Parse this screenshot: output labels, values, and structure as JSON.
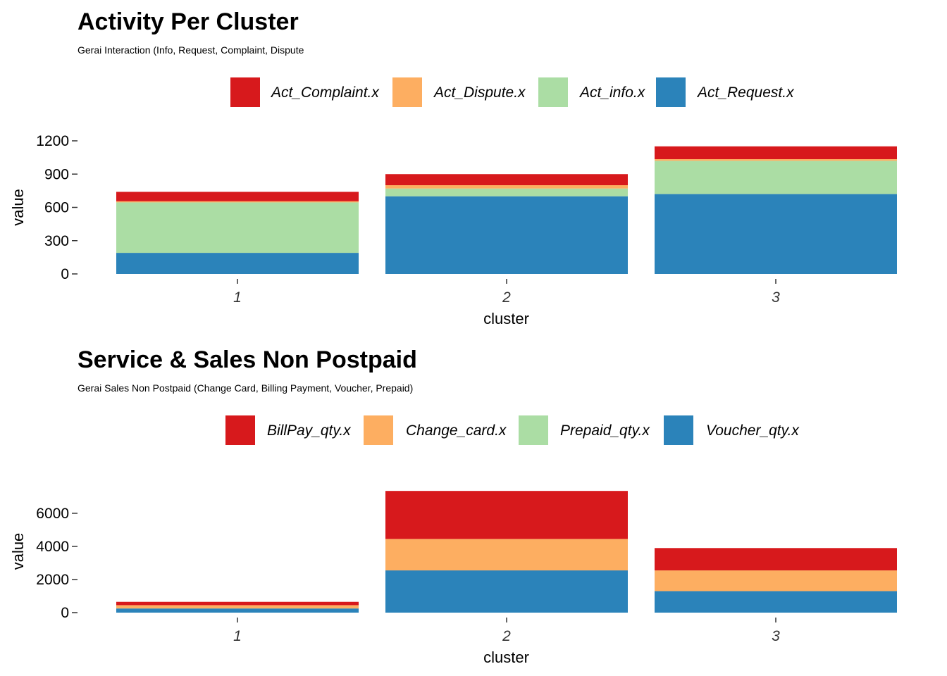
{
  "chart_data": [
    {
      "type": "bar",
      "stacked": true,
      "title": "Activity Per Cluster",
      "subtitle": "Gerai Interaction (Info, Request, Complaint, Dispute",
      "xlabel": "cluster",
      "ylabel": "value",
      "categories": [
        "1",
        "2",
        "3"
      ],
      "ylim": [
        0,
        1200
      ],
      "yticks": [
        0,
        300,
        600,
        900,
        1200
      ],
      "legend_position": "top",
      "grid": false,
      "series": [
        {
          "name": "Act_Complaint.x",
          "color": "#d7191c",
          "values": [
            85,
            100,
            115
          ]
        },
        {
          "name": "Act_Dispute.x",
          "color": "#fdae61",
          "values": [
            10,
            30,
            15
          ]
        },
        {
          "name": "Act_info.x",
          "color": "#abdda4",
          "values": [
            455,
            70,
            300
          ]
        },
        {
          "name": "Act_Request.x",
          "color": "#2b83ba",
          "values": [
            190,
            700,
            720
          ]
        }
      ]
    },
    {
      "type": "bar",
      "stacked": true,
      "title": "Service & Sales Non Postpaid",
      "subtitle": "Gerai Sales Non Postpaid (Change Card, Billing Payment, Voucher, Prepaid)",
      "xlabel": "cluster",
      "ylabel": "value",
      "categories": [
        "1",
        "2",
        "3"
      ],
      "ylim": [
        0,
        7400
      ],
      "yticks": [
        0,
        2000,
        4000,
        6000
      ],
      "legend_position": "top",
      "grid": false,
      "series": [
        {
          "name": "BillPay_qty.x",
          "color": "#d7191c",
          "values": [
            200,
            2900,
            1350
          ]
        },
        {
          "name": "Change_card.x",
          "color": "#fdae61",
          "values": [
            200,
            1900,
            1250
          ]
        },
        {
          "name": "Prepaid_qty.x",
          "color": "#abdda4",
          "values": [
            0,
            0,
            0
          ]
        },
        {
          "name": "Voucher_qty.x",
          "color": "#2b83ba",
          "values": [
            250,
            2550,
            1300
          ]
        }
      ]
    }
  ]
}
